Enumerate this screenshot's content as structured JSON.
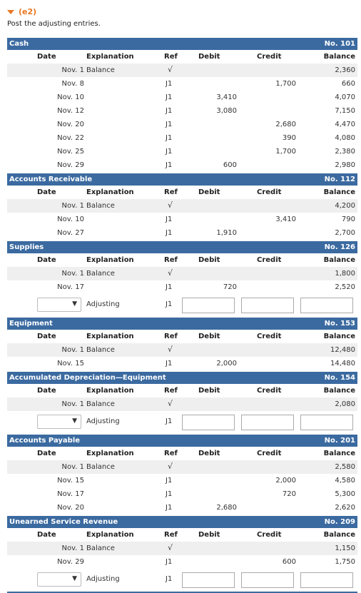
{
  "part_label": "(e2)",
  "instruction": "Post the adjusting entries.",
  "columns": {
    "date": "Date",
    "explanation": "Explanation",
    "ref": "Ref",
    "debit": "Debit",
    "credit": "Credit",
    "balance": "Balance"
  },
  "adjusting_label": "Adjusting",
  "accounts": [
    {
      "name": "Cash",
      "number": "No. 101",
      "rows": [
        {
          "date": "Nov. 1",
          "expl": "Balance",
          "ref": "√",
          "debit": "",
          "credit": "",
          "balance": "2,360"
        },
        {
          "date": "Nov. 8",
          "expl": "",
          "ref": "J1",
          "debit": "",
          "credit": "1,700",
          "balance": "660"
        },
        {
          "date": "Nov. 10",
          "expl": "",
          "ref": "J1",
          "debit": "3,410",
          "credit": "",
          "balance": "4,070"
        },
        {
          "date": "Nov. 12",
          "expl": "",
          "ref": "J1",
          "debit": "3,080",
          "credit": "",
          "balance": "7,150"
        },
        {
          "date": "Nov. 20",
          "expl": "",
          "ref": "J1",
          "debit": "",
          "credit": "2,680",
          "balance": "4,470"
        },
        {
          "date": "Nov. 22",
          "expl": "",
          "ref": "J1",
          "debit": "",
          "credit": "390",
          "balance": "4,080"
        },
        {
          "date": "Nov. 25",
          "expl": "",
          "ref": "J1",
          "debit": "",
          "credit": "1,700",
          "balance": "2,380"
        },
        {
          "date": "Nov. 29",
          "expl": "",
          "ref": "J1",
          "debit": "600",
          "credit": "",
          "balance": "2,980"
        }
      ],
      "adjusting": false
    },
    {
      "name": "Accounts Receivable",
      "number": "No. 112",
      "rows": [
        {
          "date": "Nov. 1",
          "expl": "Balance",
          "ref": "√",
          "debit": "",
          "credit": "",
          "balance": "4,200"
        },
        {
          "date": "Nov. 10",
          "expl": "",
          "ref": "J1",
          "debit": "",
          "credit": "3,410",
          "balance": "790"
        },
        {
          "date": "Nov. 27",
          "expl": "",
          "ref": "J1",
          "debit": "1,910",
          "credit": "",
          "balance": "2,700"
        }
      ],
      "adjusting": false
    },
    {
      "name": "Supplies",
      "number": "No. 126",
      "rows": [
        {
          "date": "Nov. 1",
          "expl": "Balance",
          "ref": "√",
          "debit": "",
          "credit": "",
          "balance": "1,800"
        },
        {
          "date": "Nov. 17",
          "expl": "",
          "ref": "J1",
          "debit": "720",
          "credit": "",
          "balance": "2,520"
        }
      ],
      "adjusting": true,
      "adjusting_ref": "J1"
    },
    {
      "name": "Equipment",
      "number": "No. 153",
      "rows": [
        {
          "date": "Nov. 1",
          "expl": "Balance",
          "ref": "√",
          "debit": "",
          "credit": "",
          "balance": "12,480"
        },
        {
          "date": "Nov. 15",
          "expl": "",
          "ref": "J1",
          "debit": "2,000",
          "credit": "",
          "balance": "14,480"
        }
      ],
      "adjusting": false
    },
    {
      "name": "Accumulated Depreciation—Equipment",
      "number": "No. 154",
      "rows": [
        {
          "date": "Nov. 1",
          "expl": "Balance",
          "ref": "√",
          "debit": "",
          "credit": "",
          "balance": "2,080"
        }
      ],
      "adjusting": true,
      "adjusting_ref": "J1"
    },
    {
      "name": "Accounts Payable",
      "number": "No. 201",
      "rows": [
        {
          "date": "Nov. 1",
          "expl": "Balance",
          "ref": "√",
          "debit": "",
          "credit": "",
          "balance": "2,580"
        },
        {
          "date": "Nov. 15",
          "expl": "",
          "ref": "J1",
          "debit": "",
          "credit": "2,000",
          "balance": "4,580"
        },
        {
          "date": "Nov. 17",
          "expl": "",
          "ref": "J1",
          "debit": "",
          "credit": "720",
          "balance": "5,300"
        },
        {
          "date": "Nov. 20",
          "expl": "",
          "ref": "J1",
          "debit": "2,680",
          "credit": "",
          "balance": "2,620"
        }
      ],
      "adjusting": false
    },
    {
      "name": "Unearned Service Revenue",
      "number": "No. 209",
      "rows": [
        {
          "date": "Nov. 1",
          "expl": "Balance",
          "ref": "√",
          "debit": "",
          "credit": "",
          "balance": "1,150"
        },
        {
          "date": "Nov. 29",
          "expl": "",
          "ref": "J1",
          "debit": "",
          "credit": "600",
          "balance": "1,750"
        }
      ],
      "adjusting": true,
      "adjusting_ref": "J1"
    }
  ]
}
